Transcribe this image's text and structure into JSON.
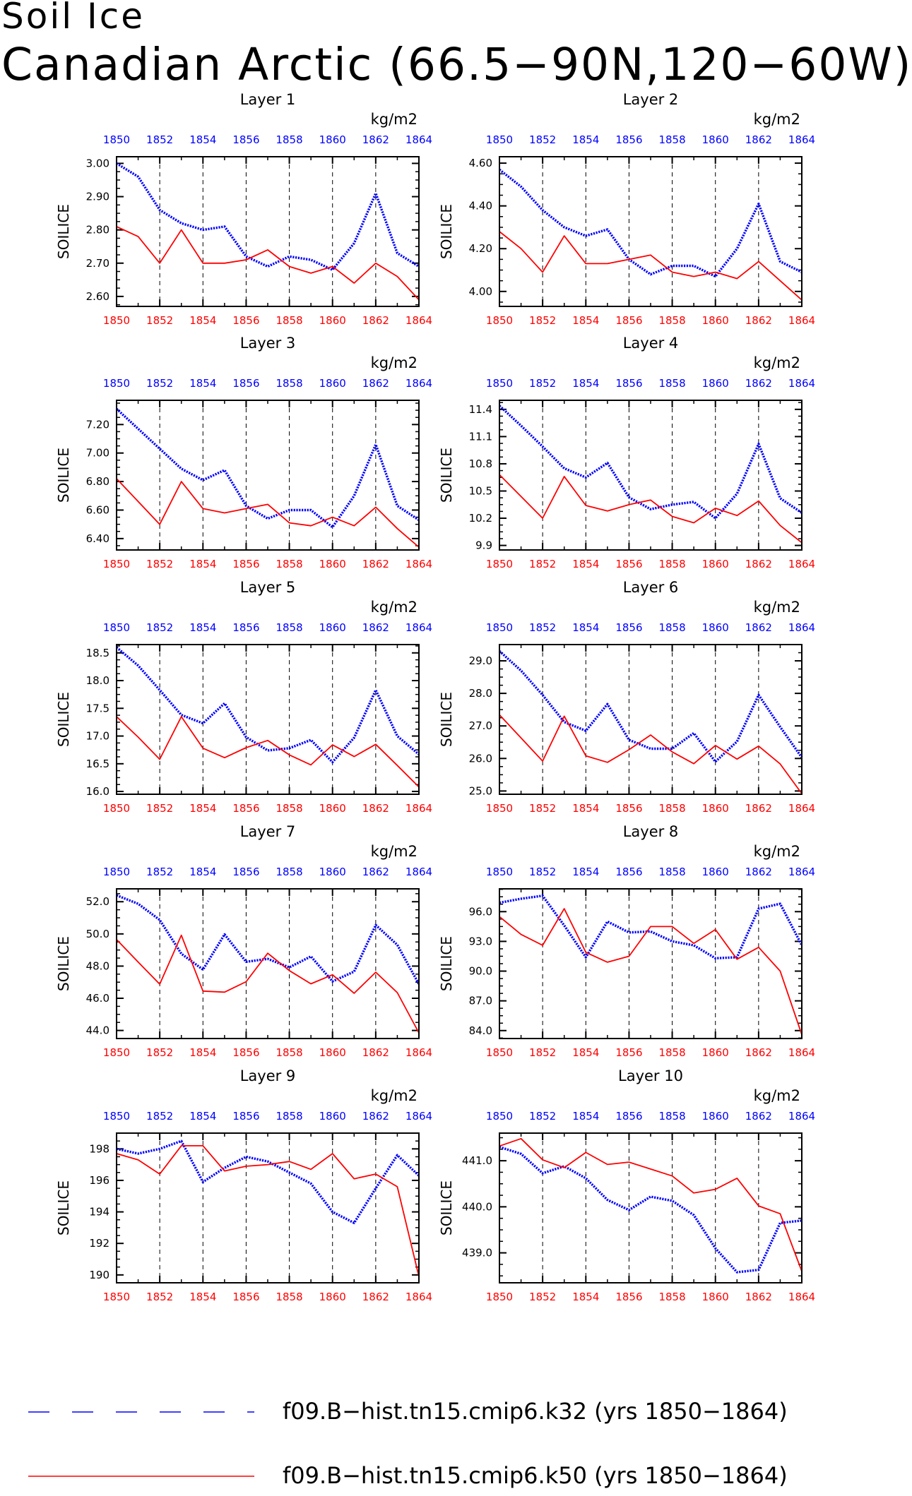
{
  "title": "Soil Ice",
  "subtitle": "Canadian Arctic (66.5−90N,120−60W)",
  "colors": {
    "k32": "#0000ff",
    "k50": "#ff0000",
    "axis": "#000000"
  },
  "legend": [
    {
      "label": "f09.B−hist.tn15.cmip6.k32 (yrs 1850−1864)",
      "color": "#0000ff",
      "style": "dashed"
    },
    {
      "label": "f09.B−hist.tn15.cmip6.k50 (yrs 1850−1864)",
      "color": "#ff0000",
      "style": "solid"
    }
  ],
  "chart_data": [
    {
      "type": "line",
      "title": "Layer 1",
      "unit": "kg/m2",
      "ylabel": "SOILICE",
      "x": [
        1850,
        1851,
        1852,
        1853,
        1854,
        1855,
        1856,
        1857,
        1858,
        1859,
        1860,
        1861,
        1862,
        1863,
        1864
      ],
      "xticks": [
        1850,
        1852,
        1854,
        1856,
        1858,
        1860,
        1862,
        1864
      ],
      "yticks": [
        "2.60",
        "2.70",
        "2.80",
        "2.90",
        "3.00"
      ],
      "ylim": [
        2.57,
        3.02
      ],
      "series": [
        {
          "name": "f09.B−hist.tn15.cmip6.k32",
          "color": "#0000ff",
          "style": "dotted",
          "values": [
            3.0,
            2.96,
            2.86,
            2.82,
            2.8,
            2.81,
            2.72,
            2.69,
            2.72,
            2.71,
            2.68,
            2.76,
            2.91,
            2.73,
            2.69
          ]
        },
        {
          "name": "f09.B−hist.tn15.cmip6.k50",
          "color": "#ff0000",
          "style": "solid",
          "values": [
            2.81,
            2.78,
            2.7,
            2.8,
            2.7,
            2.7,
            2.71,
            2.74,
            2.69,
            2.67,
            2.69,
            2.64,
            2.7,
            2.66,
            2.59
          ]
        }
      ]
    },
    {
      "type": "line",
      "title": "Layer 2",
      "unit": "kg/m2",
      "ylabel": "SOILICE",
      "x": [
        1850,
        1851,
        1852,
        1853,
        1854,
        1855,
        1856,
        1857,
        1858,
        1859,
        1860,
        1861,
        1862,
        1863,
        1864
      ],
      "xticks": [
        1850,
        1852,
        1854,
        1856,
        1858,
        1860,
        1862,
        1864
      ],
      "yticks": [
        "4.00",
        "4.20",
        "4.40",
        "4.60"
      ],
      "ylim": [
        3.93,
        4.63
      ],
      "series": [
        {
          "name": "f09.B−hist.tn15.cmip6.k32",
          "color": "#0000ff",
          "style": "dotted",
          "values": [
            4.57,
            4.49,
            4.38,
            4.3,
            4.26,
            4.29,
            4.15,
            4.08,
            4.12,
            4.12,
            4.07,
            4.2,
            4.41,
            4.14,
            4.09
          ]
        },
        {
          "name": "f09.B−hist.tn15.cmip6.k50",
          "color": "#ff0000",
          "style": "solid",
          "values": [
            4.28,
            4.2,
            4.09,
            4.26,
            4.13,
            4.13,
            4.15,
            4.17,
            4.09,
            4.07,
            4.09,
            4.06,
            4.14,
            4.05,
            3.96
          ]
        }
      ]
    },
    {
      "type": "line",
      "title": "Layer 3",
      "unit": "kg/m2",
      "ylabel": "SOILICE",
      "x": [
        1850,
        1851,
        1852,
        1853,
        1854,
        1855,
        1856,
        1857,
        1858,
        1859,
        1860,
        1861,
        1862,
        1863,
        1864
      ],
      "xticks": [
        1850,
        1852,
        1854,
        1856,
        1858,
        1860,
        1862,
        1864
      ],
      "yticks": [
        "6.40",
        "6.60",
        "6.80",
        "7.00",
        "7.20"
      ],
      "ylim": [
        6.32,
        7.37
      ],
      "series": [
        {
          "name": "f09.B−hist.tn15.cmip6.k32",
          "color": "#0000ff",
          "style": "dotted",
          "values": [
            7.31,
            7.17,
            7.03,
            6.89,
            6.81,
            6.88,
            6.63,
            6.54,
            6.6,
            6.6,
            6.48,
            6.7,
            7.06,
            6.63,
            6.53
          ]
        },
        {
          "name": "f09.B−hist.tn15.cmip6.k50",
          "color": "#ff0000",
          "style": "solid",
          "values": [
            6.82,
            6.66,
            6.5,
            6.8,
            6.61,
            6.58,
            6.61,
            6.64,
            6.51,
            6.49,
            6.55,
            6.49,
            6.62,
            6.47,
            6.34
          ]
        }
      ]
    },
    {
      "type": "line",
      "title": "Layer 4",
      "unit": "kg/m2",
      "ylabel": "SOILICE",
      "x": [
        1850,
        1851,
        1852,
        1853,
        1854,
        1855,
        1856,
        1857,
        1858,
        1859,
        1860,
        1861,
        1862,
        1863,
        1864
      ],
      "xticks": [
        1850,
        1852,
        1854,
        1856,
        1858,
        1860,
        1862,
        1864
      ],
      "yticks": [
        "9.9",
        "10.2",
        "10.5",
        "10.8",
        "11.1",
        "11.4"
      ],
      "ylim": [
        9.85,
        11.5
      ],
      "series": [
        {
          "name": "f09.B−hist.tn15.cmip6.k32",
          "color": "#0000ff",
          "style": "dotted",
          "values": [
            11.44,
            11.22,
            10.99,
            10.75,
            10.65,
            10.81,
            10.43,
            10.3,
            10.35,
            10.38,
            10.2,
            10.47,
            11.02,
            10.42,
            10.26
          ]
        },
        {
          "name": "f09.B−hist.tn15.cmip6.k50",
          "color": "#ff0000",
          "style": "solid",
          "values": [
            10.68,
            10.44,
            10.2,
            10.66,
            10.34,
            10.28,
            10.35,
            10.4,
            10.22,
            10.15,
            10.31,
            10.23,
            10.39,
            10.12,
            9.93
          ]
        }
      ]
    },
    {
      "type": "line",
      "title": "Layer 5",
      "unit": "kg/m2",
      "ylabel": "SOILICE",
      "x": [
        1850,
        1851,
        1852,
        1853,
        1854,
        1855,
        1856,
        1857,
        1858,
        1859,
        1860,
        1861,
        1862,
        1863,
        1864
      ],
      "xticks": [
        1850,
        1852,
        1854,
        1856,
        1858,
        1860,
        1862,
        1864
      ],
      "yticks": [
        "16.0",
        "16.5",
        "17.0",
        "17.5",
        "18.0",
        "18.5"
      ],
      "ylim": [
        15.95,
        18.65
      ],
      "series": [
        {
          "name": "f09.B−hist.tn15.cmip6.k32",
          "color": "#0000ff",
          "style": "dotted",
          "values": [
            18.6,
            18.27,
            17.83,
            17.38,
            17.23,
            17.59,
            16.98,
            16.74,
            16.78,
            16.93,
            16.53,
            16.97,
            17.83,
            17.0,
            16.67
          ]
        },
        {
          "name": "f09.B−hist.tn15.cmip6.k50",
          "color": "#ff0000",
          "style": "solid",
          "values": [
            17.35,
            16.98,
            16.58,
            17.35,
            16.78,
            16.61,
            16.79,
            16.92,
            16.66,
            16.48,
            16.84,
            16.63,
            16.85,
            16.47,
            16.08
          ]
        }
      ]
    },
    {
      "type": "line",
      "title": "Layer 6",
      "unit": "kg/m2",
      "ylabel": "SOILICE",
      "x": [
        1850,
        1851,
        1852,
        1853,
        1854,
        1855,
        1856,
        1857,
        1858,
        1859,
        1860,
        1861,
        1862,
        1863,
        1864
      ],
      "xticks": [
        1850,
        1852,
        1854,
        1856,
        1858,
        1860,
        1862,
        1864
      ],
      "yticks": [
        "25.0",
        "26.0",
        "27.0",
        "28.0",
        "29.0"
      ],
      "ylim": [
        24.9,
        29.5
      ],
      "series": [
        {
          "name": "f09.B−hist.tn15.cmip6.k32",
          "color": "#0000ff",
          "style": "dotted",
          "values": [
            29.3,
            28.7,
            27.95,
            27.12,
            26.85,
            27.67,
            26.57,
            26.3,
            26.3,
            26.78,
            25.9,
            26.52,
            27.95,
            26.97,
            26.03
          ]
        },
        {
          "name": "f09.B−hist.tn15.cmip6.k50",
          "color": "#ff0000",
          "style": "solid",
          "values": [
            27.34,
            26.63,
            25.92,
            27.3,
            26.08,
            25.88,
            26.27,
            26.72,
            26.2,
            25.84,
            26.4,
            25.98,
            26.38,
            25.83,
            24.92
          ]
        }
      ]
    },
    {
      "type": "line",
      "title": "Layer 7",
      "unit": "kg/m2",
      "ylabel": "SOILICE",
      "x": [
        1850,
        1851,
        1852,
        1853,
        1854,
        1855,
        1856,
        1857,
        1858,
        1859,
        1860,
        1861,
        1862,
        1863,
        1864
      ],
      "xticks": [
        1850,
        1852,
        1854,
        1856,
        1858,
        1860,
        1862,
        1864
      ],
      "yticks": [
        "44.0",
        "46.0",
        "48.0",
        "50.0",
        "52.0"
      ],
      "ylim": [
        43.5,
        52.8
      ],
      "series": [
        {
          "name": "f09.B−hist.tn15.cmip6.k32",
          "color": "#0000ff",
          "style": "dotted",
          "values": [
            52.4,
            51.87,
            50.87,
            48.77,
            47.78,
            49.97,
            48.27,
            48.45,
            47.92,
            48.6,
            47.05,
            47.66,
            50.55,
            49.32,
            46.88
          ]
        },
        {
          "name": "f09.B−hist.tn15.cmip6.k50",
          "color": "#ff0000",
          "style": "solid",
          "values": [
            49.65,
            48.25,
            46.88,
            49.92,
            46.45,
            46.38,
            47.03,
            48.8,
            47.72,
            46.9,
            47.46,
            46.31,
            47.62,
            46.35,
            43.85
          ]
        }
      ]
    },
    {
      "type": "line",
      "title": "Layer 8",
      "unit": "kg/m2",
      "ylabel": "SOILICE",
      "x": [
        1850,
        1851,
        1852,
        1853,
        1854,
        1855,
        1856,
        1857,
        1858,
        1859,
        1860,
        1861,
        1862,
        1863,
        1864
      ],
      "xticks": [
        1850,
        1852,
        1854,
        1856,
        1858,
        1860,
        1862,
        1864
      ],
      "yticks": [
        "84.0",
        "87.0",
        "90.0",
        "93.0",
        "96.0"
      ],
      "ylim": [
        83.2,
        98.3
      ],
      "series": [
        {
          "name": "f09.B−hist.tn15.cmip6.k32",
          "color": "#0000ff",
          "style": "dotted",
          "values": [
            96.9,
            97.3,
            97.6,
            94.6,
            91.4,
            95.0,
            93.9,
            94.0,
            93.0,
            92.6,
            91.3,
            91.4,
            96.3,
            96.8,
            92.6
          ]
        },
        {
          "name": "f09.B−hist.tn15.cmip6.k50",
          "color": "#ff0000",
          "style": "solid",
          "values": [
            95.5,
            93.7,
            92.6,
            96.3,
            91.9,
            90.9,
            91.5,
            94.5,
            94.5,
            92.8,
            94.2,
            91.2,
            92.4,
            90.0,
            83.6
          ]
        }
      ]
    },
    {
      "type": "line",
      "title": "Layer 9",
      "unit": "kg/m2",
      "ylabel": "SOILICE",
      "x": [
        1850,
        1851,
        1852,
        1853,
        1854,
        1855,
        1856,
        1857,
        1858,
        1859,
        1860,
        1861,
        1862,
        1863,
        1864
      ],
      "xticks": [
        1850,
        1852,
        1854,
        1856,
        1858,
        1860,
        1862,
        1864
      ],
      "yticks": [
        "190",
        "192",
        "194",
        "196",
        "198"
      ],
      "ylim": [
        189.5,
        199.0
      ],
      "series": [
        {
          "name": "f09.B−hist.tn15.cmip6.k32",
          "color": "#0000ff",
          "style": "dotted",
          "values": [
            198.0,
            197.7,
            198.0,
            198.5,
            195.9,
            196.8,
            197.5,
            197.2,
            196.5,
            195.8,
            194.0,
            193.3,
            195.5,
            197.6,
            196.3
          ]
        },
        {
          "name": "f09.B−hist.tn15.cmip6.k50",
          "color": "#ff0000",
          "style": "solid",
          "values": [
            197.7,
            197.3,
            196.4,
            198.2,
            198.2,
            196.6,
            196.9,
            197.0,
            197.2,
            196.7,
            197.7,
            196.1,
            196.4,
            195.6,
            189.9
          ]
        }
      ]
    },
    {
      "type": "line",
      "title": "Layer 10",
      "unit": "kg/m2",
      "ylabel": "SOILICE",
      "x": [
        1850,
        1851,
        1852,
        1853,
        1854,
        1855,
        1856,
        1857,
        1858,
        1859,
        1860,
        1861,
        1862,
        1863,
        1864
      ],
      "xticks": [
        1850,
        1852,
        1854,
        1856,
        1858,
        1860,
        1862,
        1864
      ],
      "yticks": [
        "439.0",
        "440.0",
        "441.0"
      ],
      "ylim": [
        438.35,
        441.6
      ],
      "series": [
        {
          "name": "f09.B−hist.tn15.cmip6.k32",
          "color": "#0000ff",
          "style": "dotted",
          "values": [
            441.3,
            441.15,
            440.73,
            440.88,
            440.62,
            440.15,
            439.93,
            440.22,
            440.13,
            439.82,
            439.1,
            438.58,
            438.63,
            439.65,
            439.7
          ]
        },
        {
          "name": "f09.B−hist.tn15.cmip6.k50",
          "color": "#ff0000",
          "style": "solid",
          "values": [
            441.32,
            441.48,
            441.02,
            440.85,
            441.18,
            440.92,
            440.97,
            440.82,
            440.67,
            440.3,
            440.38,
            440.62,
            440.02,
            439.85,
            438.6
          ]
        }
      ]
    }
  ]
}
